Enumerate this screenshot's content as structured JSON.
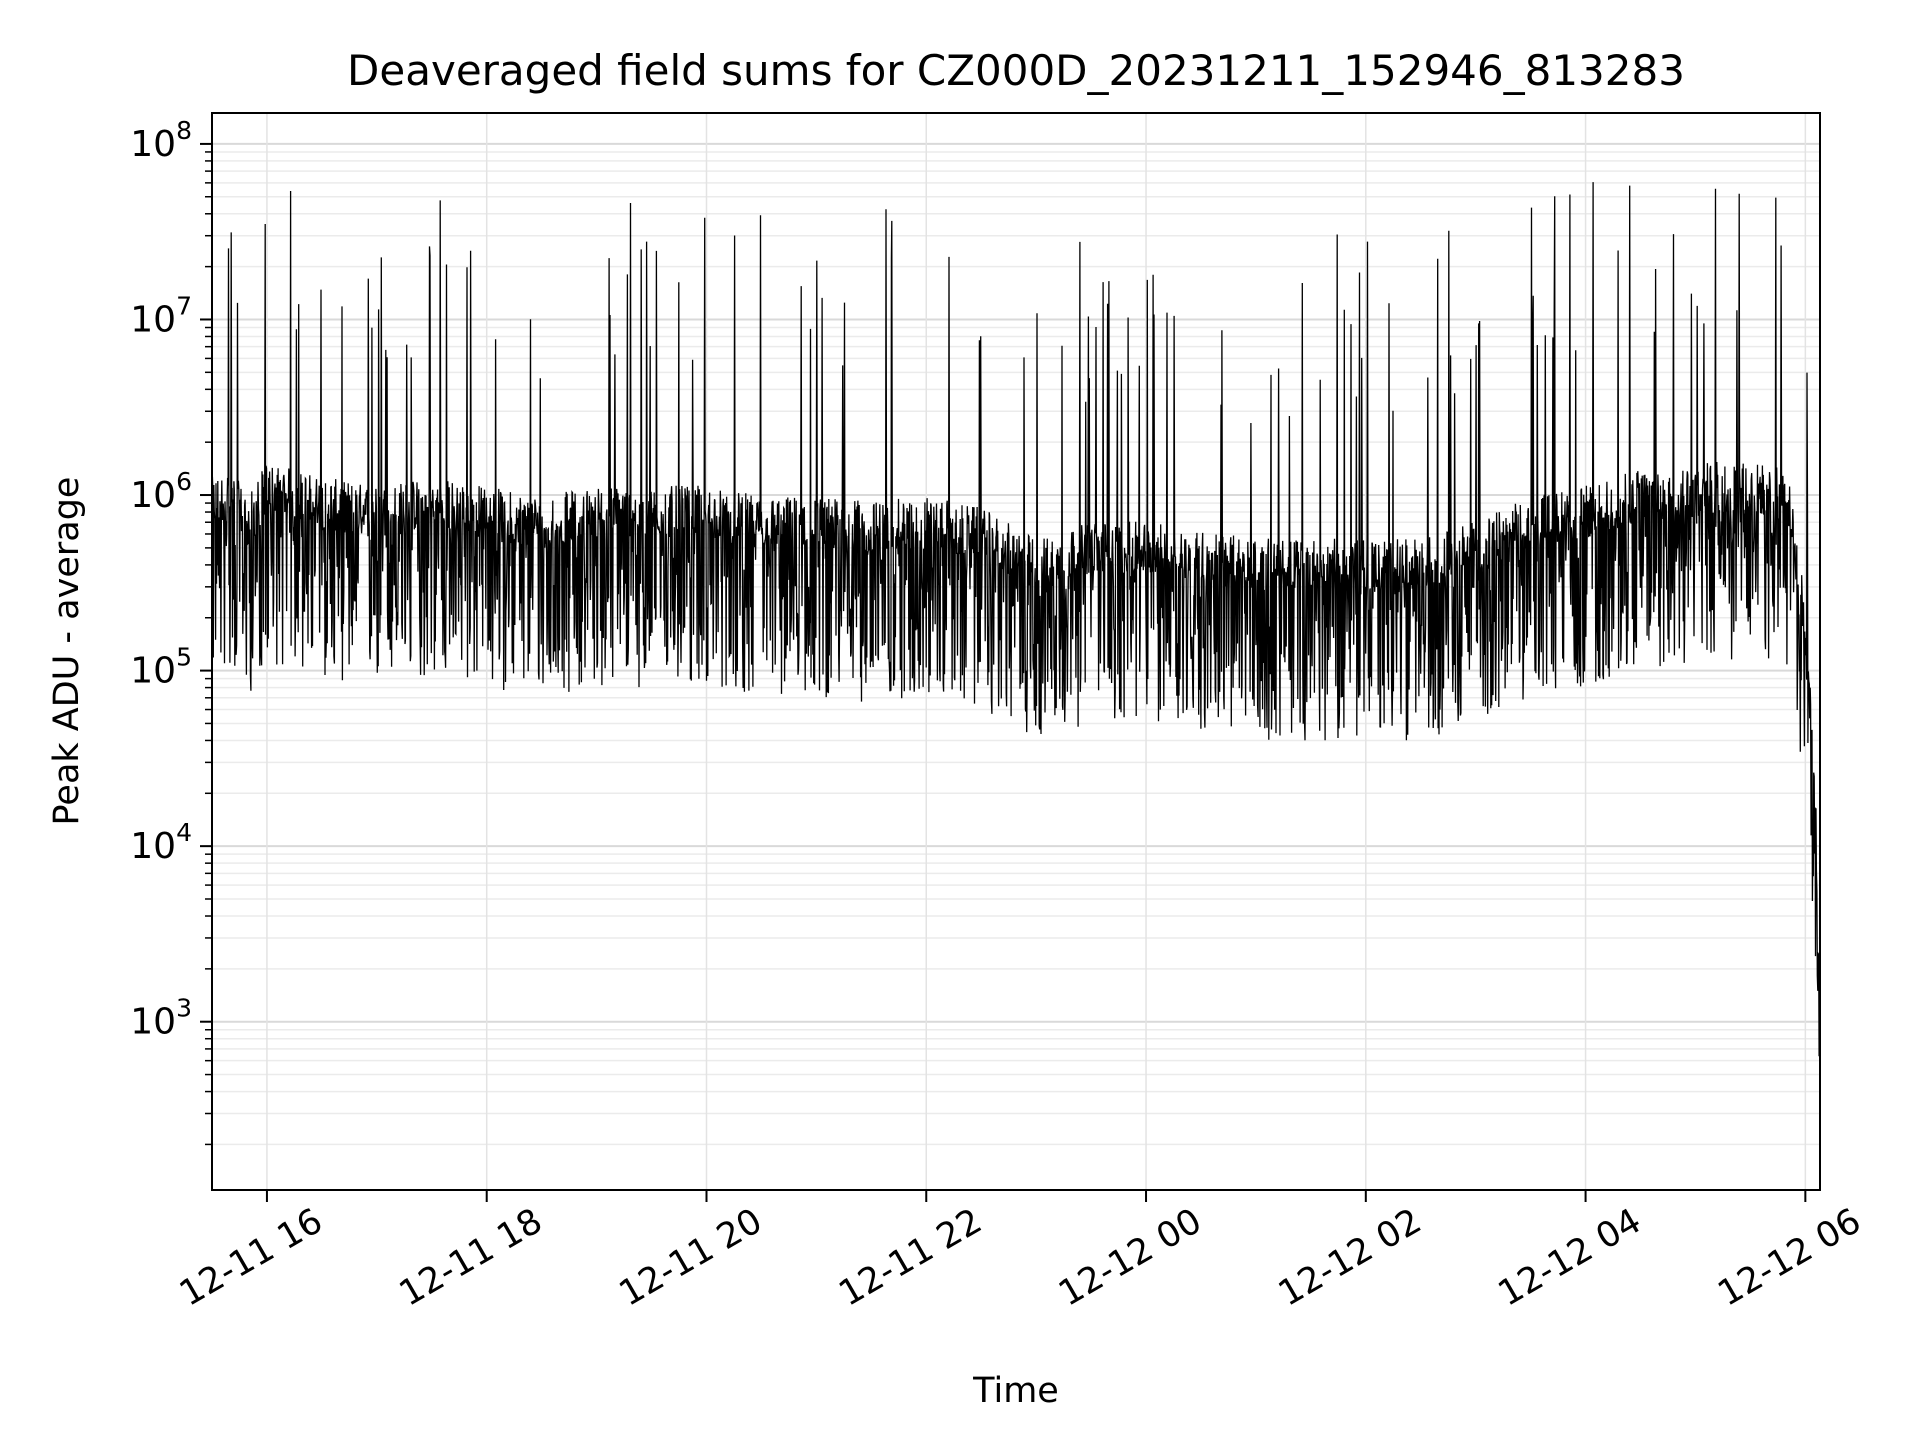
{
  "chart_data": {
    "type": "line",
    "title": "Deaveraged field sums for CZ000D_20231211_152946_813283",
    "xlabel": "Time",
    "ylabel": "Peak ADU - average",
    "yscale": "log",
    "ylim": [
      110,
      150000000
    ],
    "xlim": [
      "2023-12-11 15:30",
      "2023-12-12 06:08"
    ],
    "grid": true,
    "xticks": [
      {
        "t": "2023-12-11 16:00",
        "label": "12-11 16"
      },
      {
        "t": "2023-12-11 18:00",
        "label": "12-11 18"
      },
      {
        "t": "2023-12-11 20:00",
        "label": "12-11 20"
      },
      {
        "t": "2023-12-11 22:00",
        "label": "12-11 22"
      },
      {
        "t": "2023-12-12 00:00",
        "label": "12-12 00"
      },
      {
        "t": "2023-12-12 02:00",
        "label": "12-12 02"
      },
      {
        "t": "2023-12-12 04:00",
        "label": "12-12 04"
      },
      {
        "t": "2023-12-12 06:00",
        "label": "12-12 06"
      }
    ],
    "yticks": [
      {
        "value": 1000,
        "base": "10",
        "exp": "3"
      },
      {
        "value": 10000,
        "base": "10",
        "exp": "4"
      },
      {
        "value": 100000,
        "base": "10",
        "exp": "5"
      },
      {
        "value": 1000000,
        "base": "10",
        "exp": "6"
      },
      {
        "value": 10000000,
        "base": "10",
        "exp": "7"
      },
      {
        "value": 100000000,
        "base": "10",
        "exp": "8"
      }
    ],
    "series": [
      {
        "color": "#000000",
        "points": [
          [
            "2023-12-11 15:30",
            900000
          ],
          [
            "2023-12-11 15:40",
            1000000
          ],
          [
            "2023-12-11 15:50",
            700000
          ],
          [
            "2023-12-11 16:00",
            1100000
          ],
          [
            "2023-12-11 16:30",
            900000
          ],
          [
            "2023-12-11 17:00",
            800000
          ],
          [
            "2023-12-11 17:30",
            900000
          ],
          [
            "2023-12-11 18:00",
            800000
          ],
          [
            "2023-12-11 18:30",
            700000
          ],
          [
            "2023-12-11 19:00",
            800000
          ],
          [
            "2023-12-11 19:30",
            800000
          ],
          [
            "2023-12-11 20:00",
            800000
          ],
          [
            "2023-12-11 20:30",
            700000
          ],
          [
            "2023-12-11 21:00",
            700000
          ],
          [
            "2023-12-11 21:30",
            650000
          ],
          [
            "2023-12-11 22:00",
            700000
          ],
          [
            "2023-12-11 22:30",
            600000
          ],
          [
            "2023-12-11 23:00",
            400000
          ],
          [
            "2023-12-11 23:30",
            500000
          ],
          [
            "2023-12-12 00:00",
            500000
          ],
          [
            "2023-12-12 00:30",
            450000
          ],
          [
            "2023-12-12 01:00",
            400000
          ],
          [
            "2023-12-12 01:30",
            400000
          ],
          [
            "2023-12-12 02:00",
            400000
          ],
          [
            "2023-12-12 02:30",
            400000
          ],
          [
            "2023-12-12 03:00",
            500000
          ],
          [
            "2023-12-12 03:30",
            700000
          ],
          [
            "2023-12-12 04:00",
            800000
          ],
          [
            "2023-12-12 04:30",
            1000000
          ],
          [
            "2023-12-12 05:00",
            1100000
          ],
          [
            "2023-12-12 05:30",
            1100000
          ],
          [
            "2023-12-12 05:50",
            1000000
          ],
          [
            "2023-12-12 06:00",
            200000
          ],
          [
            "2023-12-12 06:05",
            30000
          ],
          [
            "2023-12-12 06:08",
            1000
          ]
        ]
      }
    ]
  }
}
